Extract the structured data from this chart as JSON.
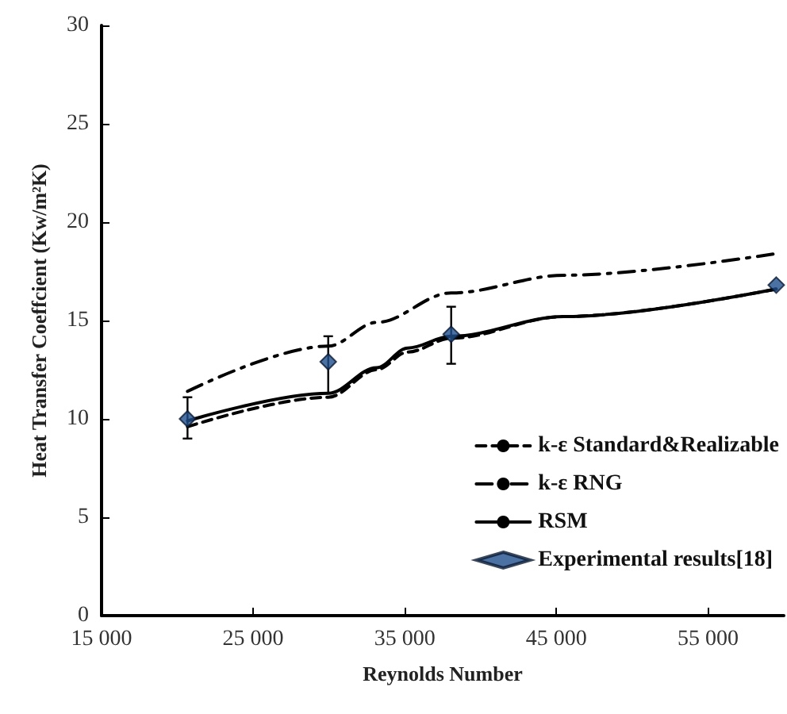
{
  "chart_data": {
    "type": "line",
    "xlabel": "Reynolds Number",
    "ylabel": "Heat Transfer Coeffcient (Kw/m²K)",
    "xlim": [
      15000,
      60000
    ],
    "xticks": [
      {
        "value": 15000,
        "label": "15 000"
      },
      {
        "value": 25000,
        "label": "25 000"
      },
      {
        "value": 35000,
        "label": "35 000"
      },
      {
        "value": 45000,
        "label": "45 000"
      },
      {
        "value": 55000,
        "label": "55 000"
      }
    ],
    "ylim": [
      0,
      30
    ],
    "yticks": [
      0,
      5,
      10,
      15,
      20,
      25,
      30
    ],
    "grid": false,
    "legend": "bottom right",
    "series": [
      {
        "name": "k-ε Standard&Realizable",
        "color": "#000000",
        "line_style": "dashed",
        "marker": "none",
        "x": [
          20670,
          29950,
          33140,
          35200,
          38060,
          45500,
          59500
        ],
        "values": [
          9.6,
          11.1,
          12.5,
          13.4,
          14.1,
          15.2,
          16.6
        ]
      },
      {
        "name": "k-ε RNG",
        "color": "#000000",
        "line_style": "dashdot",
        "marker": "none",
        "x": [
          20670,
          29950,
          33140,
          38060,
          45500,
          59500
        ],
        "values": [
          11.4,
          13.7,
          14.9,
          16.4,
          17.3,
          18.4
        ]
      },
      {
        "name": "RSM",
        "color": "#000000",
        "line_style": "solid",
        "marker": "none",
        "x": [
          20670,
          29950,
          33140,
          35200,
          38060,
          45500,
          59500
        ],
        "values": [
          9.9,
          11.3,
          12.6,
          13.6,
          14.2,
          15.2,
          16.6
        ]
      },
      {
        "name": "Experimental results[18]",
        "type": "scatter",
        "color": "#1f4e8c",
        "marker": "diamond",
        "x": [
          20670,
          29950,
          38060,
          59500
        ],
        "values": [
          10.0,
          12.9,
          14.3,
          16.8
        ],
        "errors": [
          [
            9.0,
            11.1
          ],
          [
            11.3,
            14.2
          ],
          [
            12.8,
            15.7
          ],
          null
        ]
      }
    ]
  }
}
